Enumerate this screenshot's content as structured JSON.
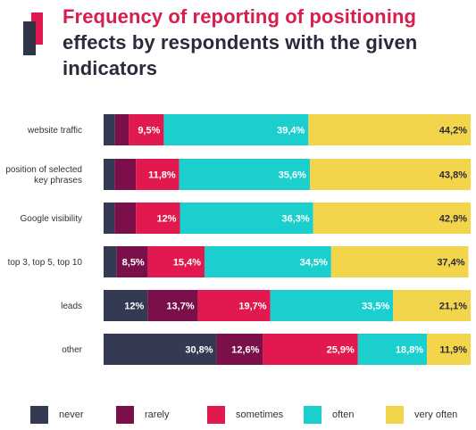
{
  "title": {
    "line1": "Frequency of reporting of positioning",
    "line2": "effects by respondents with the given",
    "line3": "indicators"
  },
  "colors": {
    "never": "#333a52",
    "rarely": "#7a0f4a",
    "sometimes": "#e2194f",
    "often": "#1ccfcf",
    "very_often": "#f2d54b",
    "title_accent": "#d61f4d",
    "text_dark": "#2a2a3a"
  },
  "chart_data": {
    "type": "bar",
    "orientation": "horizontal",
    "stacked": true,
    "categories": [
      [
        "website traffic"
      ],
      [
        "position of selected",
        "key phrases"
      ],
      [
        "Google visibility"
      ],
      [
        "top 3, top 5, top 10"
      ],
      [
        "leads"
      ],
      [
        "other"
      ]
    ],
    "series": [
      {
        "name": "never",
        "color": "#333a52",
        "values": [
          3.1,
          3.0,
          3.0,
          3.6,
          12,
          30.8
        ],
        "labels": [
          "",
          "",
          "",
          "",
          "12%",
          "30,8%"
        ]
      },
      {
        "name": "rarely",
        "color": "#7a0f4a",
        "values": [
          3.8,
          5.8,
          5.8,
          8.5,
          13.7,
          12.6
        ],
        "labels": [
          "",
          "",
          "",
          "8,5%",
          "13,7%",
          "12,6%"
        ]
      },
      {
        "name": "sometimes",
        "color": "#e2194f",
        "values": [
          9.5,
          11.8,
          12,
          15.4,
          19.7,
          25.9
        ],
        "labels": [
          "9,5%",
          "11,8%",
          "12%",
          "15,4%",
          "19,7%",
          "25,9%"
        ]
      },
      {
        "name": "often",
        "color": "#1ccfcf",
        "values": [
          39.4,
          35.6,
          36.3,
          34.5,
          33.5,
          18.8
        ],
        "labels": [
          "39,4%",
          "35,6%",
          "36,3%",
          "34,5%",
          "33,5%",
          "18,8%"
        ]
      },
      {
        "name": "very often",
        "color": "#f2d54b",
        "values": [
          44.2,
          43.8,
          42.9,
          37.4,
          21.1,
          11.9
        ],
        "labels": [
          "44,2%",
          "43,8%",
          "42,9%",
          "37,4%",
          "21,1%",
          "11,9%"
        ]
      }
    ],
    "xlim": [
      0,
      100
    ],
    "grid": false,
    "legend_position": "bottom"
  },
  "legend": [
    {
      "label": "never",
      "color": "#333a52"
    },
    {
      "label": "rarely",
      "color": "#7a0f4a"
    },
    {
      "label": "sometimes",
      "color": "#e2194f"
    },
    {
      "label": "often",
      "color": "#1ccfcf"
    },
    {
      "label": "very often",
      "color": "#f2d54b"
    }
  ]
}
